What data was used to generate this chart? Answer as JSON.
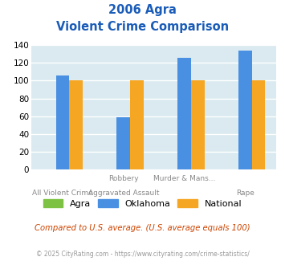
{
  "title_line1": "2006 Agra",
  "title_line2": "Violent Crime Comparison",
  "cat_top": [
    "",
    "Robbery",
    "Murder & Mans...",
    ""
  ],
  "cat_bot": [
    "All Violent Crime",
    "Aggravated Assault",
    "",
    "Rape"
  ],
  "series": {
    "Agra": [
      0,
      0,
      0,
      0
    ],
    "Oklahoma": [
      106,
      59,
      126,
      134
    ],
    "National": [
      100,
      100,
      100,
      100
    ]
  },
  "colors": {
    "Agra": "#7dc242",
    "Oklahoma": "#4a90e2",
    "National": "#f5a623"
  },
  "ylim": [
    0,
    140
  ],
  "yticks": [
    0,
    20,
    40,
    60,
    80,
    100,
    120,
    140
  ],
  "bg_color": "#daeaf0",
  "grid_color": "#ffffff",
  "title_color": "#1a5cb8",
  "footnote": "Compared to U.S. average. (U.S. average equals 100)",
  "copyright": "© 2025 CityRating.com - https://www.cityrating.com/crime-statistics/",
  "footnote_color": "#cc4400",
  "copyright_color": "#999999"
}
